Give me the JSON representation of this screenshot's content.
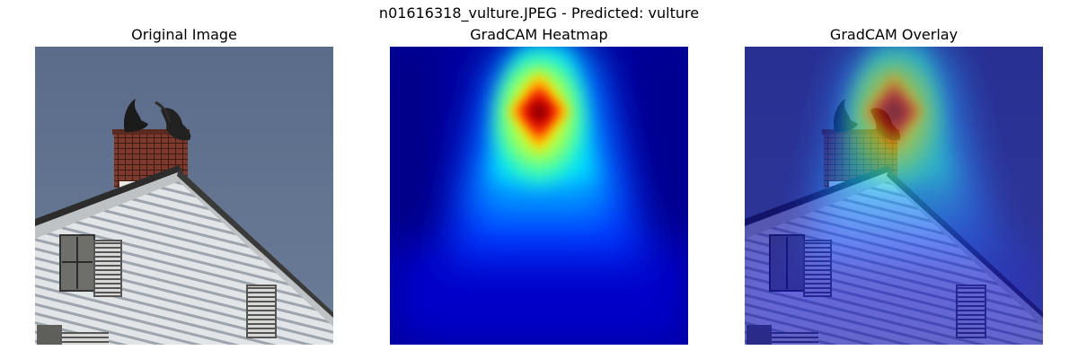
{
  "figure": {
    "suptitle": "n01616318_vulture.JPEG - Predicted: vulture",
    "panels": [
      {
        "title": "Original Image"
      },
      {
        "title": "GradCAM Heatmap"
      },
      {
        "title": "GradCAM Overlay"
      }
    ]
  },
  "colors": {
    "sky": "#5d7190",
    "siding": "#d9dde0",
    "chimney": "#7a3b2e",
    "heat_low": "#00008f",
    "heat_high": "#8b0000"
  }
}
